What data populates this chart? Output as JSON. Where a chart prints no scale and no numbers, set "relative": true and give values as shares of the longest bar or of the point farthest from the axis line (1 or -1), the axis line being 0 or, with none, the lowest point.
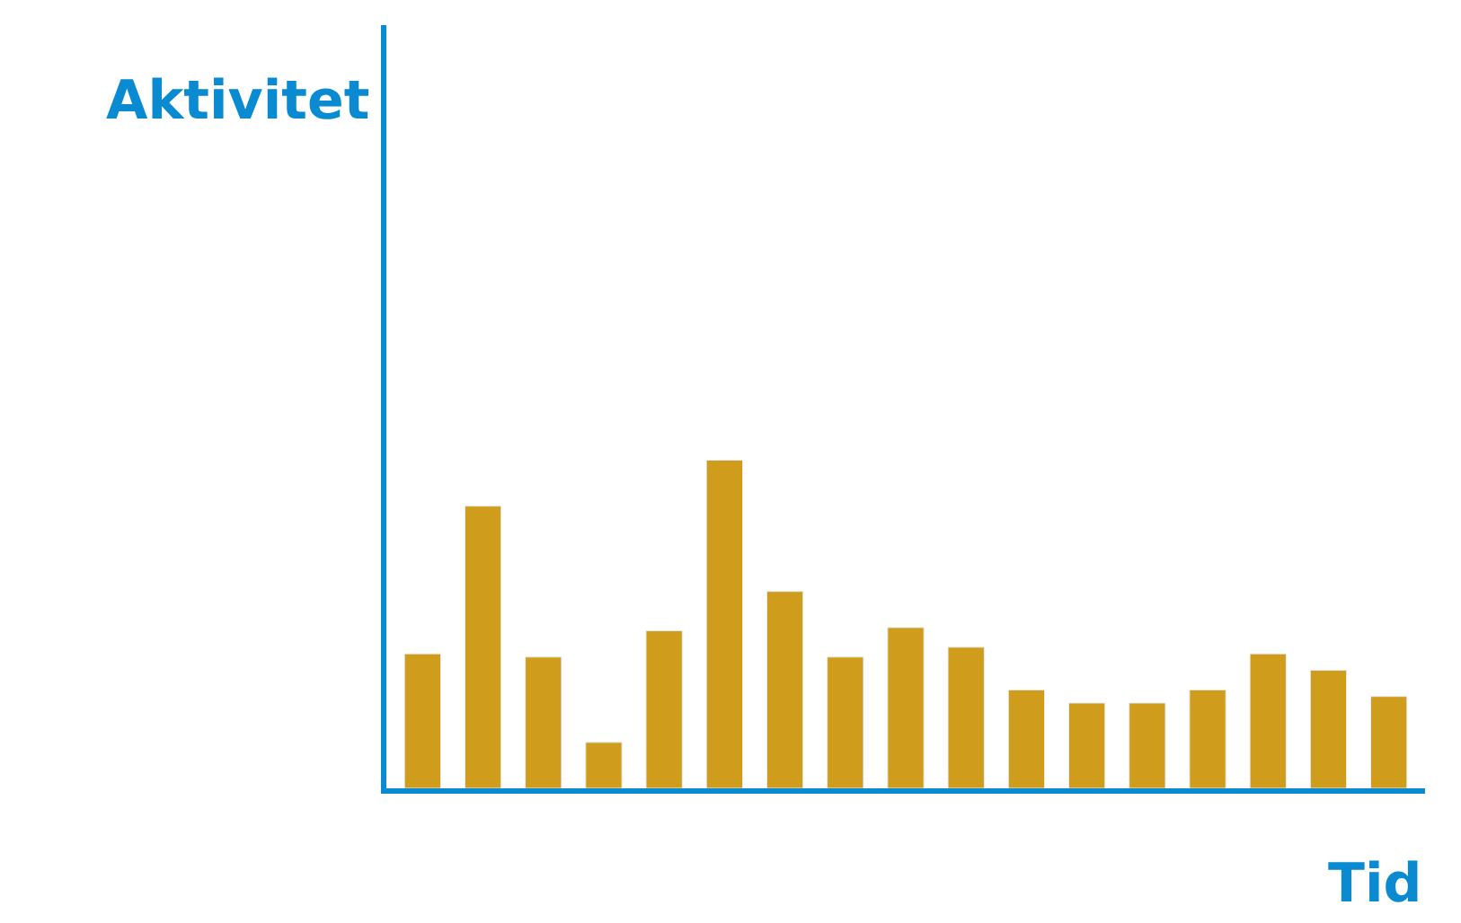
{
  "chart_data": {
    "type": "bar",
    "relative": true,
    "xlabel": "Tid",
    "annotations": [
      "Aktivitet"
    ],
    "categories": [
      null,
      null,
      null,
      null,
      null,
      null,
      null,
      null,
      null,
      null,
      null,
      null,
      null,
      null,
      null,
      null,
      null
    ],
    "values": [
      0.41,
      0.86,
      0.4,
      0.14,
      0.48,
      1,
      0.6,
      0.4,
      0.49,
      0.43,
      0.3,
      0.26,
      0.26,
      0.3,
      0.41,
      0.36,
      0.28
    ],
    "color": "#d09c1b"
  }
}
